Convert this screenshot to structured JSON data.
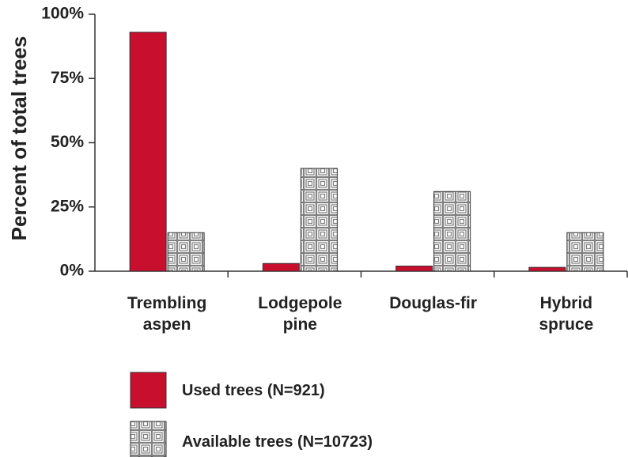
{
  "chart_data": {
    "type": "bar",
    "y_label": "Percent of total trees",
    "categories": [
      "Trembling aspen",
      "Lodgepole pine",
      "Douglas-fir",
      "Hybrid spruce"
    ],
    "series": [
      {
        "name": "Used trees (N=921)",
        "color": "#c8102e",
        "values": [
          93,
          3,
          2,
          1.5
        ]
      },
      {
        "name": "Available trees (N=10723)",
        "color": "#808080",
        "values": [
          15,
          40,
          31,
          15
        ]
      }
    ],
    "ylim": [
      0,
      100
    ],
    "yticks": [
      {
        "value": 0,
        "label": "0%"
      },
      {
        "value": 25,
        "label": "25%"
      },
      {
        "value": 50,
        "label": "50%"
      },
      {
        "value": 75,
        "label": "75%"
      },
      {
        "value": 100,
        "label": "100%"
      }
    ]
  }
}
